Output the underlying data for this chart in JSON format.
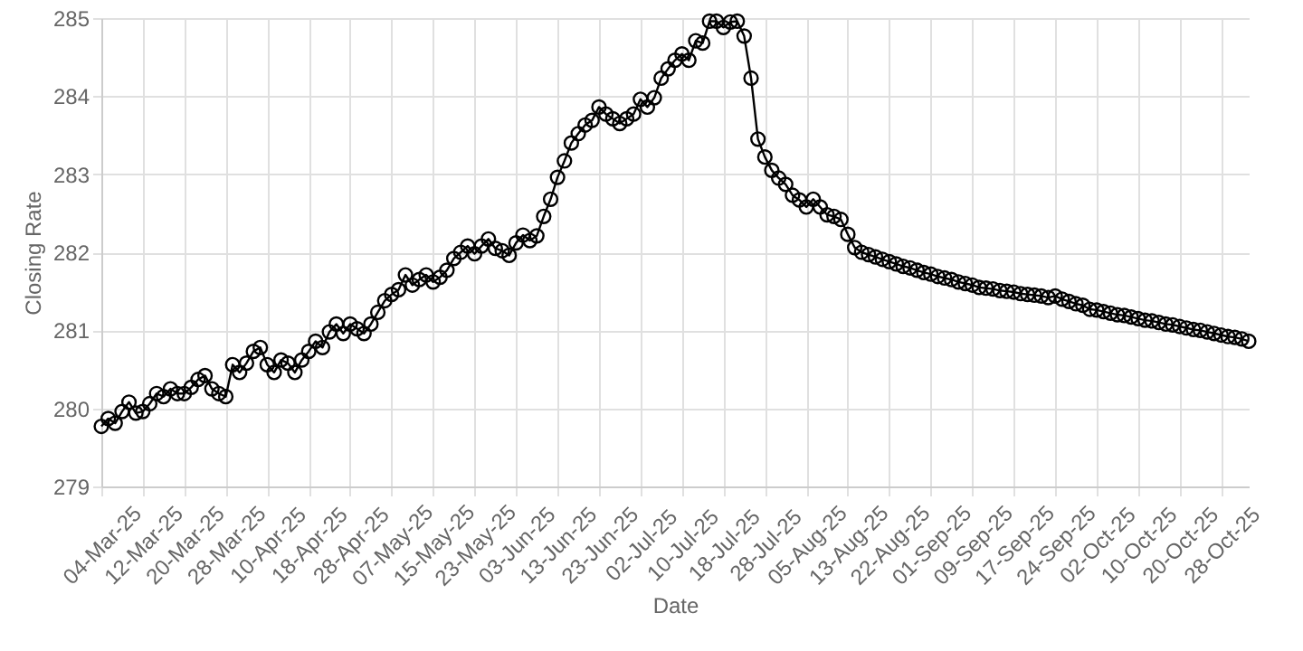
{
  "chart_data": {
    "type": "line",
    "xlabel": "Date",
    "ylabel": "Closing Rate",
    "categories": [
      "04-Mar-25",
      null,
      null,
      null,
      null,
      null,
      "12-Mar-25",
      null,
      null,
      null,
      null,
      null,
      "20-Mar-25",
      null,
      null,
      null,
      null,
      null,
      "28-Mar-25",
      null,
      null,
      null,
      null,
      null,
      "10-Apr-25",
      null,
      null,
      null,
      null,
      null,
      "18-Apr-25",
      null,
      null,
      null,
      null,
      null,
      "28-Apr-25",
      null,
      null,
      null,
      null,
      null,
      "07-May-25",
      null,
      null,
      null,
      null,
      null,
      "15-May-25",
      null,
      null,
      null,
      null,
      null,
      "23-May-25",
      null,
      null,
      null,
      null,
      null,
      "03-Jun-25",
      null,
      null,
      null,
      null,
      null,
      "13-Jun-25",
      null,
      null,
      null,
      null,
      null,
      "23-Jun-25",
      null,
      null,
      null,
      null,
      null,
      "02-Jul-25",
      null,
      null,
      null,
      null,
      null,
      "10-Jul-25",
      null,
      null,
      null,
      null,
      null,
      "18-Jul-25",
      null,
      null,
      null,
      null,
      null,
      "28-Jul-25",
      null,
      null,
      null,
      null,
      null,
      "05-Aug-25",
      null,
      null,
      null,
      null,
      null,
      "13-Aug-25",
      null,
      null,
      null,
      null,
      null,
      "22-Aug-25",
      null,
      null,
      null,
      null,
      null,
      "01-Sep-25",
      null,
      null,
      null,
      null,
      null,
      "09-Sep-25",
      null,
      null,
      null,
      null,
      null,
      "17-Sep-25",
      null,
      null,
      null,
      null,
      null,
      "24-Sep-25",
      null,
      null,
      null,
      null,
      null,
      "02-Oct-25",
      null,
      null,
      null,
      null,
      null,
      "10-Oct-25",
      null,
      null,
      null,
      null,
      null,
      "20-Oct-25",
      null,
      null,
      null,
      null,
      null,
      "28-Oct-25",
      null,
      null,
      null,
      null
    ],
    "series": [
      {
        "color": "#000000",
        "values": [
          279.77,
          279.87,
          279.81,
          279.96,
          280.08,
          279.94,
          279.96,
          280.06,
          280.19,
          280.15,
          280.25,
          280.19,
          280.19,
          280.27,
          280.37,
          280.42,
          280.25,
          280.19,
          280.15,
          280.56,
          280.46,
          280.58,
          280.73,
          280.78,
          280.56,
          280.46,
          280.62,
          280.58,
          280.46,
          280.62,
          280.73,
          280.86,
          280.78,
          280.98,
          281.08,
          280.96,
          281.08,
          281.02,
          280.96,
          281.08,
          281.23,
          281.38,
          281.46,
          281.52,
          281.71,
          281.58,
          281.65,
          281.71,
          281.62,
          281.68,
          281.77,
          281.92,
          282.0,
          282.08,
          281.98,
          282.08,
          282.17,
          282.05,
          282.02,
          281.96,
          282.12,
          282.22,
          282.15,
          282.21,
          282.46,
          282.68,
          282.96,
          283.17,
          283.4,
          283.52,
          283.63,
          283.69,
          283.86,
          283.77,
          283.71,
          283.65,
          283.71,
          283.77,
          283.96,
          283.86,
          283.98,
          284.23,
          284.35,
          284.46,
          284.54,
          284.46,
          284.71,
          284.68,
          284.96,
          284.96,
          284.88,
          284.95,
          284.96,
          284.77,
          284.23,
          283.45,
          283.22,
          283.05,
          282.95,
          282.87,
          282.73,
          282.67,
          282.58,
          282.68,
          282.58,
          282.48,
          282.46,
          282.42,
          282.23,
          282.06,
          282.0,
          281.97,
          281.94,
          281.91,
          281.88,
          281.85,
          281.82,
          281.8,
          281.77,
          281.74,
          281.72,
          281.69,
          281.67,
          281.65,
          281.62,
          281.6,
          281.58,
          281.55,
          281.54,
          281.53,
          281.51,
          281.5,
          281.49,
          281.47,
          281.46,
          281.45,
          281.44,
          281.42,
          281.44,
          281.4,
          281.37,
          281.34,
          281.32,
          281.27,
          281.26,
          281.24,
          281.22,
          281.2,
          281.19,
          281.17,
          281.15,
          281.13,
          281.12,
          281.1,
          281.08,
          281.07,
          281.05,
          281.03,
          281.01,
          281.0,
          280.98,
          280.96,
          280.94,
          280.92,
          280.91,
          280.89,
          280.86
        ]
      }
    ],
    "ylim": [
      279,
      285
    ],
    "yticks": [
      279,
      280,
      281,
      282,
      283,
      284,
      285
    ],
    "grid": true,
    "marker": "circle",
    "line_style": "solid"
  }
}
